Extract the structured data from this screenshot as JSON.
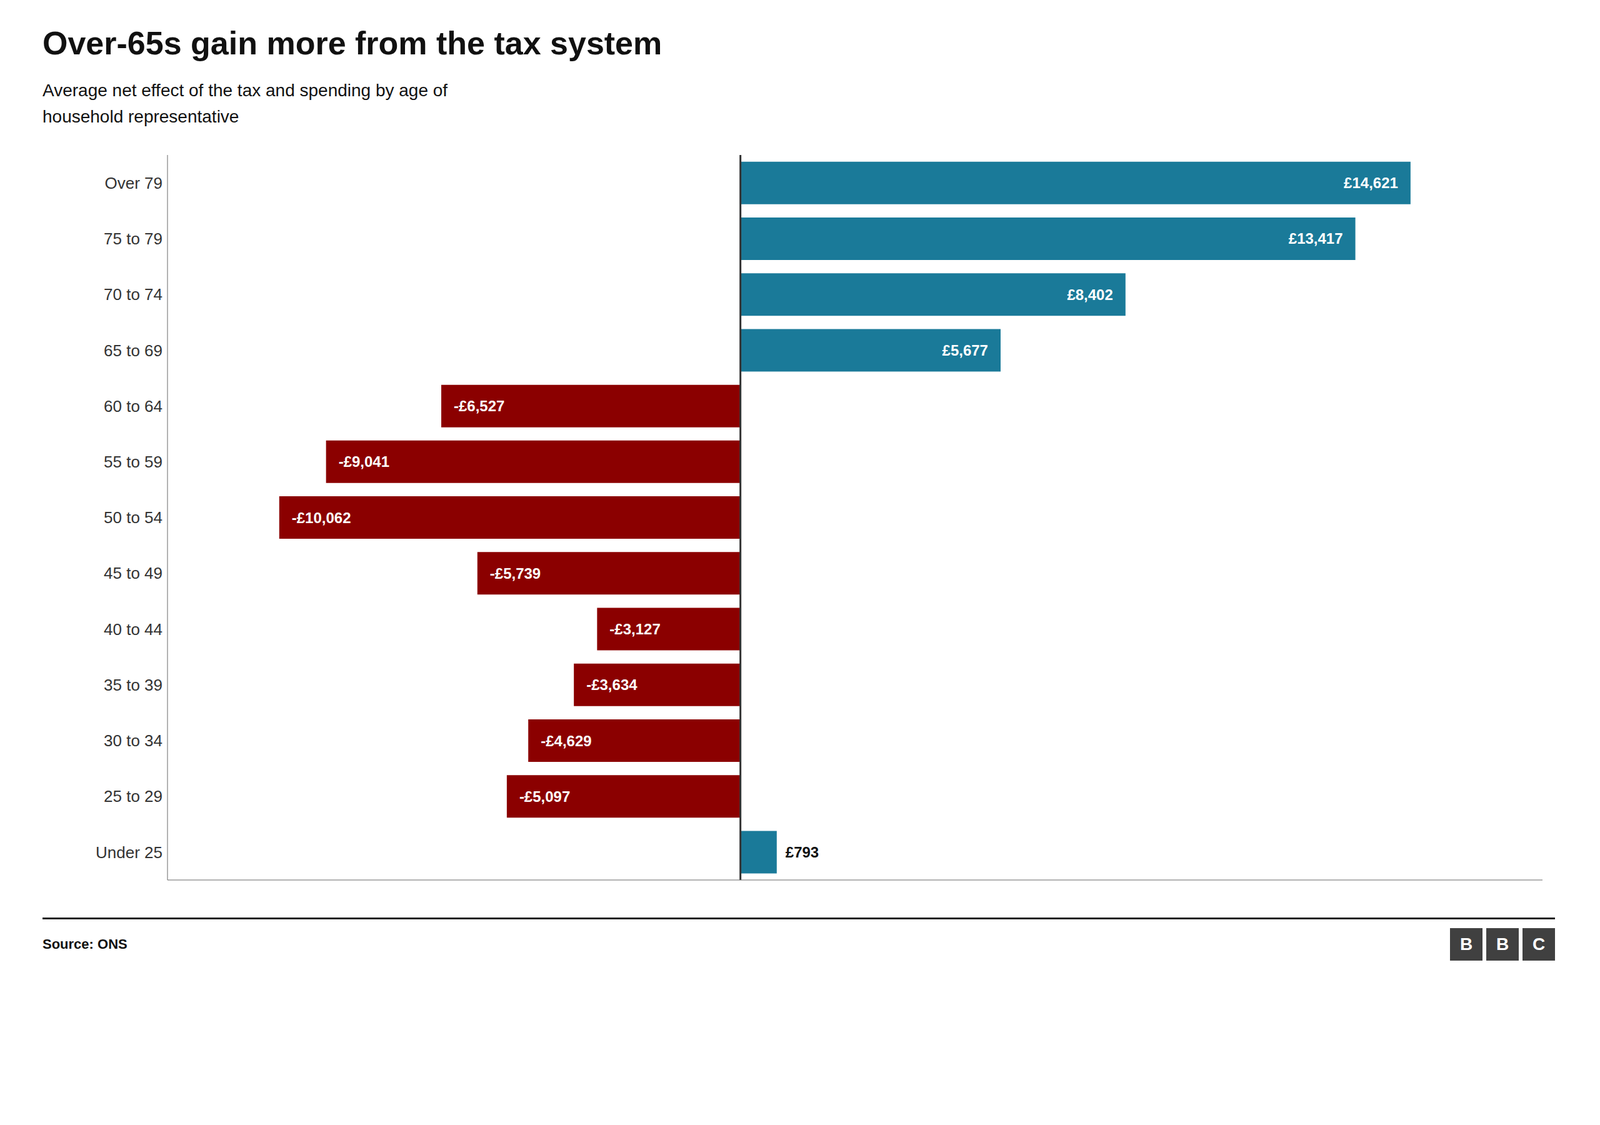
{
  "chart_data": {
    "type": "bar",
    "orientation": "horizontal",
    "title": "Over-65s gain more from the tax system",
    "subtitle": "Average net effect of the tax and spending by age of\nhousehold representative",
    "source": "Source: ONS",
    "logo": [
      "B",
      "B",
      "C"
    ],
    "categories": [
      "Over 79",
      "75 to 79",
      "70 to 74",
      "65 to 69",
      "60 to 64",
      "55 to 59",
      "50 to 54",
      "45 to 49",
      "40 to 44",
      "35 to 39",
      "30 to 34",
      "25 to 29",
      "Under 25"
    ],
    "values": [
      14621,
      13417,
      8402,
      5677,
      -6527,
      -9041,
      -10062,
      -5739,
      -3127,
      -3634,
      -4629,
      -5097,
      793
    ],
    "value_labels": [
      "£14,621",
      "£13,417",
      "£8,402",
      "£5,677",
      "-£6,527",
      "-£9,041",
      "-£10,062",
      "-£5,739",
      "-£3,127",
      "-£3,634",
      "-£4,629",
      "-£5,097",
      "£793"
    ],
    "colors": [
      "#1a7a99",
      "#1a7a99",
      "#1a7a99",
      "#1a7a99",
      "#8b0000",
      "#8b0000",
      "#8b0000",
      "#8b0000",
      "#8b0000",
      "#8b0000",
      "#8b0000",
      "#8b0000",
      "#1a7a99"
    ],
    "xlim": [
      -12500,
      17500
    ],
    "xticks": [],
    "data_labels": true,
    "tick_labels": "y",
    "grid": false
  }
}
